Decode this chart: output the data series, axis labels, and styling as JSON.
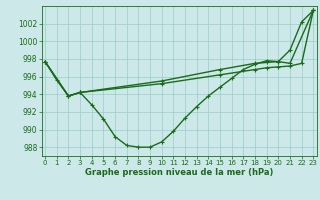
{
  "title": "Graphe pression niveau de la mer (hPa)",
  "background_color": "#cce8e8",
  "grid_color": "#99cccc",
  "line_color": "#1a6b1a",
  "ylim": [
    987.0,
    1004.0
  ],
  "yticks": [
    988,
    990,
    992,
    994,
    996,
    998,
    1000,
    1002
  ],
  "xlim": [
    -0.3,
    23.3
  ],
  "xticks": [
    0,
    1,
    2,
    3,
    4,
    5,
    6,
    7,
    8,
    9,
    10,
    11,
    12,
    13,
    14,
    15,
    16,
    17,
    18,
    19,
    20,
    21,
    22,
    23
  ],
  "s1_x": [
    0,
    1,
    2,
    3,
    4,
    5,
    6,
    7,
    8,
    9,
    10,
    11,
    12,
    13,
    14,
    15,
    16,
    17,
    18,
    19,
    20,
    21,
    22,
    23
  ],
  "s1_y": [
    997.7,
    995.6,
    993.8,
    994.2,
    992.8,
    991.2,
    989.2,
    988.2,
    988.0,
    988.0,
    988.6,
    989.8,
    991.3,
    992.6,
    993.8,
    994.8,
    995.8,
    996.8,
    997.4,
    997.8,
    997.7,
    999.0,
    1002.2,
    1003.5
  ],
  "s2_x": [
    0,
    2,
    3,
    10,
    15,
    18,
    19,
    20,
    21,
    23
  ],
  "s2_y": [
    997.7,
    993.8,
    994.2,
    995.5,
    996.8,
    997.5,
    997.6,
    997.7,
    997.5,
    1003.5
  ],
  "s3_x": [
    0,
    2,
    3,
    10,
    15,
    18,
    19,
    20,
    21,
    22,
    23
  ],
  "s3_y": [
    997.7,
    993.8,
    994.2,
    995.2,
    996.2,
    996.8,
    997.0,
    997.1,
    997.2,
    997.5,
    1003.5
  ],
  "linewidth": 1.0,
  "marker_size": 3.0,
  "tick_fontsize": 5.0,
  "xlabel_fontsize": 6.0
}
